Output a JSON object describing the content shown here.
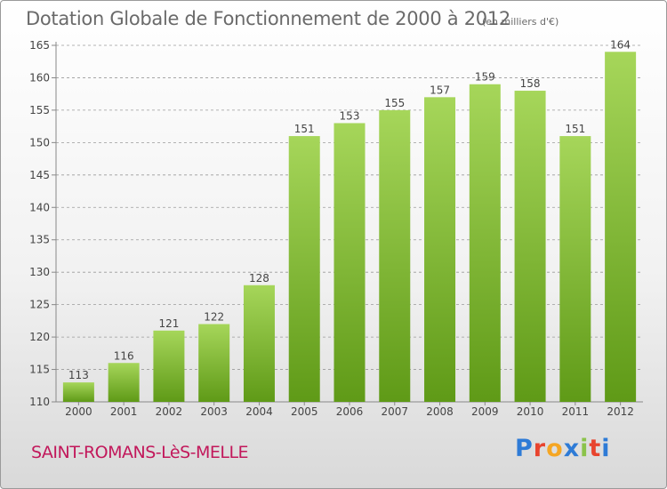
{
  "header": {
    "title": "Dotation Globale de Fonctionnement de 2000 à 2012",
    "unit": "(en milliers d'€)"
  },
  "footer": {
    "commune": "SAINT-ROMANS-LèS-MELLE",
    "logo": {
      "letters": [
        "P",
        "r",
        "o",
        "x",
        "i",
        "t",
        "i"
      ],
      "colors": [
        "#2e7bd6",
        "#e8442e",
        "#f5a623",
        "#2e7bd6",
        "#8bc34a",
        "#e8442e",
        "#2e7bd6"
      ]
    }
  },
  "colors": {
    "bar_light": "#a6d65a",
    "bar_dark": "#5f9a17",
    "axis": "#888888",
    "grid": "#9a9a9a",
    "text": "#444444"
  },
  "chart_data": {
    "type": "bar",
    "title": "Dotation Globale de Fonctionnement de 2000 à 2012",
    "xlabel": "",
    "ylabel": "",
    "categories": [
      "2000",
      "2001",
      "2002",
      "2003",
      "2004",
      "2005",
      "2006",
      "2007",
      "2008",
      "2009",
      "2010",
      "2011",
      "2012"
    ],
    "values": [
      113,
      116,
      121,
      122,
      128,
      151,
      153,
      155,
      157,
      159,
      158,
      151,
      164
    ],
    "ylim": [
      110,
      165
    ],
    "yticks": [
      110,
      115,
      120,
      125,
      130,
      135,
      140,
      145,
      150,
      155,
      160,
      165
    ],
    "grid": true,
    "data_labels": true,
    "legend": "none"
  }
}
